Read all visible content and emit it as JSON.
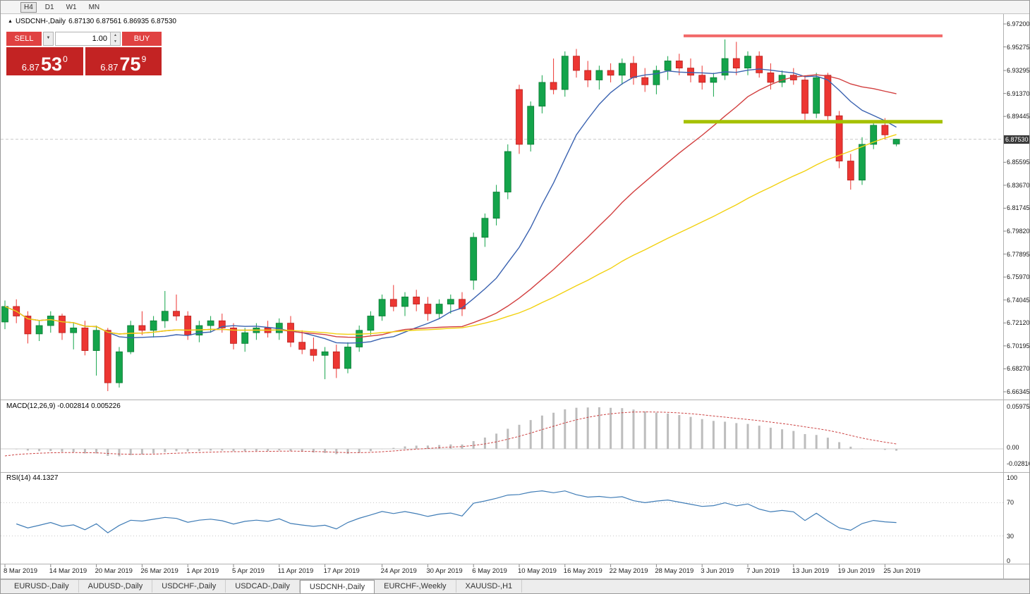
{
  "toolbar": {
    "timeframes": [
      "H4",
      "D1",
      "W1",
      "MN"
    ],
    "active": "H4"
  },
  "chart": {
    "symbol_title": "USDCNH-,Daily",
    "ohlc_text": "6.87130 6.87561 6.86935 6.87530",
    "trade_panel": {
      "sell_label": "SELL",
      "buy_label": "BUY",
      "volume": "1.00",
      "sell_price": {
        "base": "6.87",
        "big": "53",
        "sup": "0"
      },
      "buy_price": {
        "base": "6.87",
        "big": "75",
        "sup": "9"
      }
    }
  },
  "chart_data": {
    "type": "candlestick",
    "symbol": "USDCNH-",
    "timeframe": "Daily",
    "ohlc_current": {
      "open": 6.8713,
      "high": 6.87561,
      "low": 6.86935,
      "close": 6.8753
    },
    "colors": {
      "up": "#14a44b",
      "up_border": "#0c7a33",
      "down": "#ec3632",
      "down_border": "#b71f1c"
    },
    "price_axis": {
      "top": 6.972,
      "bottom": 6.66345,
      "labels": [
        "6.97200",
        "6.95275",
        "6.93295",
        "6.91370",
        "6.89445",
        "6.85595",
        "6.83670",
        "6.81745",
        "6.79820",
        "6.77895",
        "6.75970",
        "6.74045",
        "6.72120",
        "6.70195",
        "6.68270",
        "6.66345"
      ],
      "current": "6.87530",
      "current_value": 6.8753
    },
    "x_labels": [
      {
        "t": "8 Mar 2019",
        "i": 0
      },
      {
        "t": "14 Mar 2019",
        "i": 4
      },
      {
        "t": "20 Mar 2019",
        "i": 8
      },
      {
        "t": "26 Mar 2019",
        "i": 12
      },
      {
        "t": "1 Apr 2019",
        "i": 16
      },
      {
        "t": "5 Apr 2019",
        "i": 20
      },
      {
        "t": "11 Apr 2019",
        "i": 24
      },
      {
        "t": "17 Apr 2019",
        "i": 28
      },
      {
        "t": "24 Apr 2019",
        "i": 33
      },
      {
        "t": "30 Apr 2019",
        "i": 37
      },
      {
        "t": "6 May 2019",
        "i": 41
      },
      {
        "t": "10 May 2019",
        "i": 45
      },
      {
        "t": "16 May 2019",
        "i": 49
      },
      {
        "t": "22 May 2019",
        "i": 53
      },
      {
        "t": "28 May 2019",
        "i": 57
      },
      {
        "t": "3 Jun 2019",
        "i": 61
      },
      {
        "t": "7 Jun 2019",
        "i": 65
      },
      {
        "t": "13 Jun 2019",
        "i": 69
      },
      {
        "t": "19 Jun 2019",
        "i": 73
      },
      {
        "t": "25 Jun 2019",
        "i": 77
      }
    ],
    "candles": [
      [
        6.722,
        6.74,
        6.716,
        6.735
      ],
      [
        6.735,
        6.741,
        6.721,
        6.727
      ],
      [
        6.727,
        6.731,
        6.704,
        6.712
      ],
      [
        6.712,
        6.723,
        6.706,
        6.719
      ],
      [
        6.719,
        6.731,
        6.713,
        6.727
      ],
      [
        6.727,
        6.729,
        6.707,
        6.713
      ],
      [
        6.713,
        6.721,
        6.699,
        6.717
      ],
      [
        6.717,
        6.723,
        6.694,
        6.698
      ],
      [
        6.698,
        6.719,
        6.677,
        6.715
      ],
      [
        6.715,
        6.717,
        6.664,
        6.671
      ],
      [
        6.671,
        6.701,
        6.667,
        6.697
      ],
      [
        6.697,
        6.723,
        6.695,
        6.719
      ],
      [
        6.719,
        6.731,
        6.711,
        6.715
      ],
      [
        6.715,
        6.727,
        6.709,
        6.723
      ],
      [
        6.723,
        6.748,
        6.717,
        6.731
      ],
      [
        6.731,
        6.745,
        6.723,
        6.727
      ],
      [
        6.727,
        6.731,
        6.707,
        6.711
      ],
      [
        6.711,
        6.723,
        6.705,
        6.719
      ],
      [
        6.719,
        6.727,
        6.713,
        6.723
      ],
      [
        6.723,
        6.729,
        6.713,
        6.717
      ],
      [
        6.717,
        6.721,
        6.699,
        6.704
      ],
      [
        6.704,
        6.717,
        6.697,
        6.713
      ],
      [
        6.713,
        6.721,
        6.707,
        6.717
      ],
      [
        6.717,
        6.723,
        6.709,
        6.713
      ],
      [
        6.713,
        6.725,
        6.707,
        6.721
      ],
      [
        6.721,
        6.727,
        6.701,
        6.705
      ],
      [
        6.705,
        6.715,
        6.695,
        6.699
      ],
      [
        6.699,
        6.709,
        6.689,
        6.694
      ],
      [
        6.694,
        6.701,
        6.674,
        6.697
      ],
      [
        6.697,
        6.703,
        6.675,
        6.683
      ],
      [
        6.683,
        6.705,
        6.679,
        6.701
      ],
      [
        6.701,
        6.719,
        6.697,
        6.715
      ],
      [
        6.715,
        6.731,
        6.711,
        6.727
      ],
      [
        6.727,
        6.745,
        6.723,
        6.741
      ],
      [
        6.741,
        6.753,
        6.731,
        6.735
      ],
      [
        6.735,
        6.747,
        6.727,
        6.743
      ],
      [
        6.743,
        6.749,
        6.731,
        6.737
      ],
      [
        6.737,
        6.743,
        6.723,
        6.729
      ],
      [
        6.729,
        6.741,
        6.725,
        6.737
      ],
      [
        6.737,
        6.745,
        6.729,
        6.741
      ],
      [
        6.741,
        6.747,
        6.727,
        6.733
      ],
      [
        6.757,
        6.797,
        6.749,
        6.793
      ],
      [
        6.793,
        6.813,
        6.785,
        6.809
      ],
      [
        6.809,
        6.837,
        6.803,
        6.831
      ],
      [
        6.831,
        6.871,
        6.825,
        6.865
      ],
      [
        6.917,
        6.921,
        6.863,
        6.871
      ],
      [
        6.871,
        6.907,
        6.865,
        6.903
      ],
      [
        6.903,
        6.929,
        6.897,
        6.923
      ],
      [
        6.923,
        6.943,
        6.913,
        6.917
      ],
      [
        6.917,
        6.949,
        6.911,
        6.945
      ],
      [
        6.945,
        6.951,
        6.927,
        6.933
      ],
      [
        6.933,
        6.941,
        6.919,
        6.925
      ],
      [
        6.925,
        6.937,
        6.917,
        6.933
      ],
      [
        6.933,
        6.939,
        6.923,
        6.929
      ],
      [
        6.929,
        6.943,
        6.921,
        6.939
      ],
      [
        6.939,
        6.945,
        6.921,
        6.927
      ],
      [
        6.927,
        6.935,
        6.915,
        6.921
      ],
      [
        6.921,
        6.937,
        6.913,
        6.933
      ],
      [
        6.933,
        6.945,
        6.925,
        6.941
      ],
      [
        6.941,
        6.947,
        6.929,
        6.935
      ],
      [
        6.935,
        6.943,
        6.923,
        6.929
      ],
      [
        6.929,
        6.937,
        6.917,
        6.923
      ],
      [
        6.923,
        6.931,
        6.911,
        6.927
      ],
      [
        6.929,
        6.959,
        6.925,
        6.943
      ],
      [
        6.943,
        6.957,
        6.929,
        6.935
      ],
      [
        6.935,
        6.949,
        6.929,
        6.945
      ],
      [
        6.945,
        6.949,
        6.927,
        6.931
      ],
      [
        6.931,
        6.939,
        6.917,
        6.923
      ],
      [
        6.923,
        6.933,
        6.919,
        6.929
      ],
      [
        6.929,
        6.935,
        6.921,
        6.925
      ],
      [
        6.925,
        6.929,
        6.891,
        6.897
      ],
      [
        6.897,
        6.931,
        6.893,
        6.927
      ],
      [
        6.929,
        6.931,
        6.891,
        6.895
      ],
      [
        6.895,
        6.899,
        6.851,
        6.857
      ],
      [
        6.857,
        6.863,
        6.833,
        6.841
      ],
      [
        6.841,
        6.877,
        6.837,
        6.871
      ],
      [
        6.871,
        6.891,
        6.867,
        6.887
      ],
      [
        6.887,
        6.893,
        6.875,
        6.879
      ],
      [
        6.8713,
        6.87561,
        6.86935,
        6.8753
      ]
    ],
    "moving_averages": [
      {
        "period": 10,
        "color": "#3a62b0"
      },
      {
        "period": 25,
        "color": "#d23f3f"
      },
      {
        "period": 45,
        "color": "#f2d110"
      }
    ],
    "overlays": {
      "resistance": {
        "price": 6.962,
        "color": "#f26a6a"
      },
      "support": {
        "price": 6.89,
        "color": "#a6c103"
      }
    },
    "indicators": {
      "macd": {
        "label": "MACD(12,26,9) -0.002814 0.005226",
        "value": -0.002814,
        "signal": 0.005226,
        "axis_labels": [
          "0.059758",
          "0.00",
          "-0.02816"
        ],
        "histogram_color": "#bdbdbd",
        "signal_color": "#cc4343"
      },
      "rsi": {
        "label": "RSI(14) 44.1327",
        "value": 44.1327,
        "axis_labels": [
          "100",
          "70",
          "30",
          "0"
        ],
        "levels": [
          70,
          30
        ],
        "line_color": "#3f7cb6"
      }
    }
  },
  "tabs": [
    {
      "label": "EURUSD-,Daily",
      "active": false
    },
    {
      "label": "AUDUSD-,Daily",
      "active": false
    },
    {
      "label": "USDCHF-,Daily",
      "active": false
    },
    {
      "label": "USDCAD-,Daily",
      "active": false
    },
    {
      "label": "USDCNH-,Daily",
      "active": true
    },
    {
      "label": "EURCHF-,Weekly",
      "active": false
    },
    {
      "label": "XAUUSD-,H1",
      "active": false
    }
  ]
}
